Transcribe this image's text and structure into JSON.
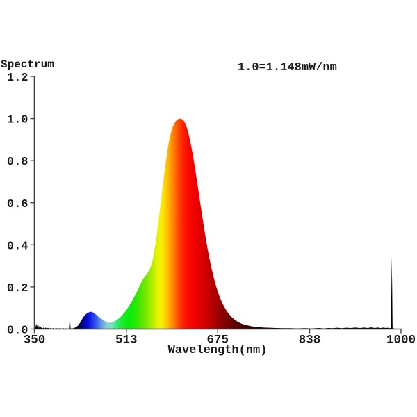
{
  "page": {
    "background": "#ffffff"
  },
  "header": {
    "title": "Spectrum",
    "calibration": "1.0=1.148mW/nm"
  },
  "chart_data": {
    "type": "area",
    "title": "Spectrum",
    "calibration": "1.0=1.148mW/nm",
    "xlabel": "Wavelength(nm)",
    "ylabel": "",
    "xlim": [
      350,
      1000
    ],
    "ylim": [
      0,
      1.2
    ],
    "grid": false,
    "legend": "none",
    "axis_color": "#404040",
    "text_color": "#1b1b1b",
    "x_ticks": [
      {
        "label": "350",
        "value": 350
      },
      {
        "label": "513",
        "value": 513
      },
      {
        "label": "675",
        "value": 675
      },
      {
        "label": "838",
        "value": 838
      },
      {
        "label": "1000",
        "value": 1000
      }
    ],
    "y_ticks": [
      {
        "label": "1.2",
        "value": 1.2
      },
      {
        "label": "1.0",
        "value": 1.0
      },
      {
        "label": "0.8",
        "value": 0.8
      },
      {
        "label": "0.6",
        "value": 0.6
      },
      {
        "label": "0.4",
        "value": 0.4
      },
      {
        "label": "0.2",
        "value": 0.2
      },
      {
        "label": "0.0",
        "value": 0.0
      }
    ],
    "features": {
      "blue_peak": {
        "wavelength_nm": 451,
        "value": 0.082
      },
      "cyan_dip": {
        "wavelength_nm": 481,
        "value": 0.03
      },
      "green_shoulder": {
        "wavelength_nm": 547,
        "value": 0.255
      },
      "main_peak": {
        "wavelength_nm": 608,
        "value": 1.0
      },
      "ir_spike": {
        "wavelength_nm": 984,
        "value": 0.345
      }
    },
    "series": [
      {
        "name": "spectrum",
        "points": [
          [
            350,
            0.005
          ],
          [
            350.6,
            0.03
          ],
          [
            351.2,
            0.008
          ],
          [
            352,
            0.024
          ],
          [
            352.8,
            0.007
          ],
          [
            353.6,
            0.028
          ],
          [
            354.4,
            0.01
          ],
          [
            355.2,
            0.022
          ],
          [
            356,
            0.007
          ],
          [
            357,
            0.018
          ],
          [
            358,
            0.005
          ],
          [
            359,
            0.015
          ],
          [
            360,
            0.004
          ],
          [
            361,
            0.012
          ],
          [
            362,
            0.005
          ],
          [
            363.5,
            0.01
          ],
          [
            365,
            0.003
          ],
          [
            366.5,
            0.008
          ],
          [
            368,
            0.003
          ],
          [
            370,
            0.007
          ],
          [
            372,
            0.002
          ],
          [
            374,
            0.006
          ],
          [
            376.5,
            0.002
          ],
          [
            379,
            0.005
          ],
          [
            381.5,
            0.002
          ],
          [
            384,
            0.005
          ],
          [
            386.5,
            0.002
          ],
          [
            389,
            0.004
          ],
          [
            392,
            0.002
          ],
          [
            395,
            0.004
          ],
          [
            398,
            0.002
          ],
          [
            401,
            0.004
          ],
          [
            404,
            0.002
          ],
          [
            407,
            0.003
          ],
          [
            410,
            0.002
          ],
          [
            412.5,
            0.002
          ],
          [
            413.3,
            0.034
          ],
          [
            414.2,
            0.003
          ],
          [
            417,
            0.003
          ],
          [
            420,
            0.005
          ],
          [
            423,
            0.008
          ],
          [
            426,
            0.013
          ],
          [
            429,
            0.022
          ],
          [
            432,
            0.035
          ],
          [
            435,
            0.049
          ],
          [
            438,
            0.061
          ],
          [
            441,
            0.07
          ],
          [
            444,
            0.076
          ],
          [
            447,
            0.08
          ],
          [
            451,
            0.082
          ],
          [
            454,
            0.079
          ],
          [
            457,
            0.074
          ],
          [
            460,
            0.067
          ],
          [
            463,
            0.06
          ],
          [
            466,
            0.054
          ],
          [
            469,
            0.048
          ],
          [
            472,
            0.043
          ],
          [
            475,
            0.038
          ],
          [
            478,
            0.033
          ],
          [
            481,
            0.03
          ],
          [
            484,
            0.03
          ],
          [
            487,
            0.031
          ],
          [
            490,
            0.034
          ],
          [
            493,
            0.038
          ],
          [
            496,
            0.043
          ],
          [
            499,
            0.049
          ],
          [
            502,
            0.056
          ],
          [
            505,
            0.064
          ],
          [
            508,
            0.073
          ],
          [
            511,
            0.083
          ],
          [
            514,
            0.094
          ],
          [
            517,
            0.106
          ],
          [
            520,
            0.119
          ],
          [
            523,
            0.133
          ],
          [
            526,
            0.148
          ],
          [
            529,
            0.163
          ],
          [
            532,
            0.179
          ],
          [
            535,
            0.196
          ],
          [
            538,
            0.213
          ],
          [
            541,
            0.229
          ],
          [
            544,
            0.243
          ],
          [
            547,
            0.255
          ],
          [
            550,
            0.265
          ],
          [
            553,
            0.277
          ],
          [
            556,
            0.294
          ],
          [
            559,
            0.32
          ],
          [
            562,
            0.358
          ],
          [
            565,
            0.408
          ],
          [
            568,
            0.468
          ],
          [
            571,
            0.534
          ],
          [
            574,
            0.602
          ],
          [
            577,
            0.67
          ],
          [
            580,
            0.736
          ],
          [
            583,
            0.797
          ],
          [
            586,
            0.851
          ],
          [
            589,
            0.897
          ],
          [
            592,
            0.932
          ],
          [
            595,
            0.958
          ],
          [
            598,
            0.977
          ],
          [
            601,
            0.989
          ],
          [
            604,
            0.996
          ],
          [
            608,
            1.0
          ],
          [
            612,
            0.997
          ],
          [
            615,
            0.989
          ],
          [
            618,
            0.974
          ],
          [
            621,
            0.951
          ],
          [
            624,
            0.92
          ],
          [
            627,
            0.883
          ],
          [
            630,
            0.841
          ],
          [
            633,
            0.794
          ],
          [
            636,
            0.743
          ],
          [
            639,
            0.69
          ],
          [
            642,
            0.636
          ],
          [
            645,
            0.582
          ],
          [
            648,
            0.529
          ],
          [
            651,
            0.478
          ],
          [
            654,
            0.429
          ],
          [
            657,
            0.383
          ],
          [
            660,
            0.34
          ],
          [
            663,
            0.301
          ],
          [
            666,
            0.266
          ],
          [
            669,
            0.234
          ],
          [
            672,
            0.205
          ],
          [
            675,
            0.18
          ],
          [
            678,
            0.157
          ],
          [
            681,
            0.137
          ],
          [
            684,
            0.119
          ],
          [
            687,
            0.104
          ],
          [
            690,
            0.09
          ],
          [
            693,
            0.078
          ],
          [
            696,
            0.068
          ],
          [
            699,
            0.059
          ],
          [
            703,
            0.049
          ],
          [
            707,
            0.041
          ],
          [
            711,
            0.034
          ],
          [
            716,
            0.027
          ],
          [
            721,
            0.022
          ],
          [
            727,
            0.018
          ],
          [
            733,
            0.014
          ],
          [
            740,
            0.011
          ],
          [
            748,
            0.009
          ],
          [
            757,
            0.007
          ],
          [
            767,
            0.006
          ],
          [
            778,
            0.005
          ],
          [
            790,
            0.004
          ],
          [
            803,
            0.004
          ],
          [
            816,
            0.003
          ],
          [
            829,
            0.004
          ],
          [
            842,
            0.003
          ],
          [
            855,
            0.005
          ],
          [
            863,
            0.003
          ],
          [
            871,
            0.005
          ],
          [
            879,
            0.004
          ],
          [
            887,
            0.006
          ],
          [
            895,
            0.004
          ],
          [
            903,
            0.006
          ],
          [
            911,
            0.005
          ],
          [
            919,
            0.007
          ],
          [
            927,
            0.005
          ],
          [
            935,
            0.007
          ],
          [
            941,
            0.005
          ],
          [
            947,
            0.008
          ],
          [
            953,
            0.005
          ],
          [
            959,
            0.007
          ],
          [
            964,
            0.005
          ],
          [
            969,
            0.007
          ],
          [
            973,
            0.005
          ],
          [
            977,
            0.006
          ],
          [
            980,
            0.004
          ],
          [
            982,
            0.006
          ],
          [
            982.8,
            0.15
          ],
          [
            983.5,
            0.345
          ],
          [
            984.3,
            0.2
          ],
          [
            985,
            0.006
          ],
          [
            987,
            0.003
          ],
          [
            991,
            0.002
          ],
          [
            996,
            0.001
          ],
          [
            1000,
            0.001
          ]
        ]
      }
    ],
    "spectral_gradient": [
      {
        "nm": 350,
        "color": "#000000"
      },
      {
        "nm": 424,
        "color": "#000014"
      },
      {
        "nm": 430,
        "color": "#000050"
      },
      {
        "nm": 436,
        "color": "#0004A0"
      },
      {
        "nm": 442,
        "color": "#0008C8"
      },
      {
        "nm": 448,
        "color": "#0D1AE0"
      },
      {
        "nm": 452,
        "color": "#1830EE"
      },
      {
        "nm": 458,
        "color": "#3152EC"
      },
      {
        "nm": 464,
        "color": "#4C7AE6"
      },
      {
        "nm": 470,
        "color": "#68A2E0"
      },
      {
        "nm": 476,
        "color": "#7EC4DC"
      },
      {
        "nm": 481,
        "color": "#86D8D2"
      },
      {
        "nm": 486,
        "color": "#6FE4C2"
      },
      {
        "nm": 492,
        "color": "#4AE894"
      },
      {
        "nm": 498,
        "color": "#2EE85C"
      },
      {
        "nm": 505,
        "color": "#1BE836"
      },
      {
        "nm": 512,
        "color": "#0EEC14"
      },
      {
        "nm": 520,
        "color": "#08EC08"
      },
      {
        "nm": 530,
        "color": "#2AE800"
      },
      {
        "nm": 540,
        "color": "#55E600"
      },
      {
        "nm": 550,
        "color": "#84EA00"
      },
      {
        "nm": 560,
        "color": "#B5F000"
      },
      {
        "nm": 568,
        "color": "#E2F400"
      },
      {
        "nm": 575,
        "color": "#FCF000"
      },
      {
        "nm": 582,
        "color": "#FFD200"
      },
      {
        "nm": 589,
        "color": "#FFAC00"
      },
      {
        "nm": 596,
        "color": "#FF8200"
      },
      {
        "nm": 603,
        "color": "#FF5800"
      },
      {
        "nm": 609,
        "color": "#FF3400"
      },
      {
        "nm": 616,
        "color": "#FD1A00"
      },
      {
        "nm": 624,
        "color": "#F80800"
      },
      {
        "nm": 634,
        "color": "#F00000"
      },
      {
        "nm": 645,
        "color": "#E00000"
      },
      {
        "nm": 657,
        "color": "#C80000"
      },
      {
        "nm": 670,
        "color": "#AC0000"
      },
      {
        "nm": 684,
        "color": "#8A0000"
      },
      {
        "nm": 700,
        "color": "#660000"
      },
      {
        "nm": 716,
        "color": "#4A0000"
      },
      {
        "nm": 734,
        "color": "#330000"
      },
      {
        "nm": 755,
        "color": "#1F0000"
      },
      {
        "nm": 780,
        "color": "#100000"
      },
      {
        "nm": 810,
        "color": "#060000"
      },
      {
        "nm": 850,
        "color": "#010000"
      },
      {
        "nm": 1000,
        "color": "#000000"
      }
    ]
  }
}
